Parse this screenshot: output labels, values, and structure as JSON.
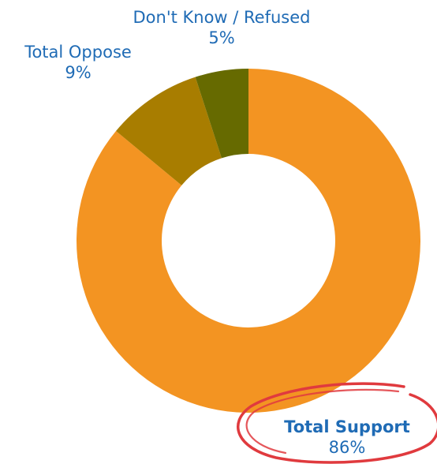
{
  "chart_data": {
    "type": "pie",
    "variant": "donut",
    "title": "",
    "slices": [
      {
        "label": "Total Support",
        "value": 86,
        "value_label": "86%",
        "color": "#f39422"
      },
      {
        "label": "Total Oppose",
        "value": 9,
        "value_label": "9%",
        "color": "#a87d00"
      },
      {
        "label": "Don't Know / Refused",
        "value": 5,
        "value_label": "5%",
        "color": "#666a00"
      }
    ],
    "highlight": {
      "label": "Total Support",
      "style": "hand-drawn circle",
      "color": "#e03a3e"
    },
    "label_color": "#1f6bb5"
  }
}
